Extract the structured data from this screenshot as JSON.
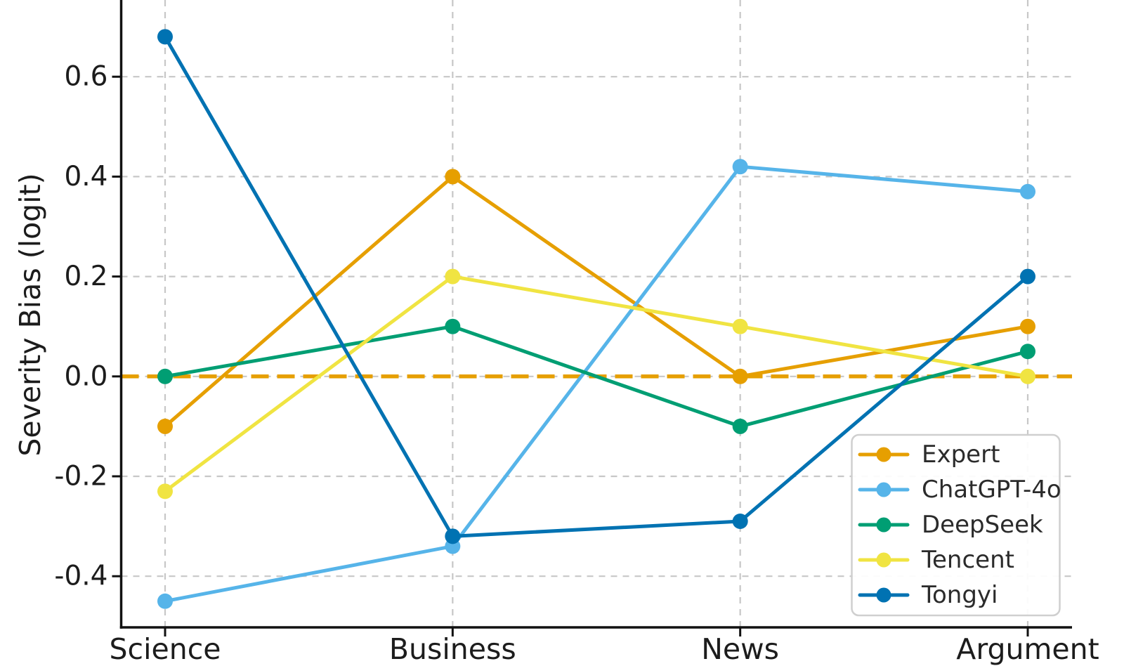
{
  "chart_data": {
    "type": "line",
    "title": "",
    "xlabel": "",
    "ylabel": "Severity Bias (logit)",
    "categories": [
      "Science",
      "Business",
      "News",
      "Argument"
    ],
    "series": [
      {
        "name": "Expert",
        "color": "#E69F00",
        "values": [
          -0.1,
          0.4,
          0.0,
          0.1
        ]
      },
      {
        "name": "ChatGPT-4o",
        "color": "#56B4E9",
        "values": [
          -0.45,
          -0.34,
          0.42,
          0.37
        ]
      },
      {
        "name": "DeepSeek",
        "color": "#009E73",
        "values": [
          0.0,
          0.1,
          -0.1,
          0.05
        ]
      },
      {
        "name": "Tencent",
        "color": "#F0E442",
        "values": [
          -0.23,
          0.2,
          0.1,
          0.0
        ]
      },
      {
        "name": "Tongyi",
        "color": "#0072B2",
        "values": [
          0.68,
          -0.32,
          -0.29,
          0.2
        ]
      }
    ],
    "yticks": [
      0.6,
      0.4,
      0.2,
      0.0,
      -0.2,
      -0.4
    ],
    "ytick_labels": [
      "0.6",
      "0.4",
      "0.2",
      "0.0",
      "-0.2",
      "-0.4"
    ],
    "ylim": [
      -0.5,
      0.755
    ],
    "grid": true,
    "grid_style": "dashed",
    "grid_color": "#c7c7c7",
    "axis_color": "#111111",
    "text_color": "#1c1c1c",
    "zero_line": {
      "value": 0.0,
      "color": "#E69F00",
      "style": "dashed"
    },
    "marker": "circle",
    "legend": {
      "position": "lower right",
      "entries": [
        "Expert",
        "ChatGPT-4o",
        "DeepSeek",
        "Tencent",
        "Tongyi"
      ],
      "border_color": "#cfcfcf",
      "background": "#ffffff"
    }
  }
}
